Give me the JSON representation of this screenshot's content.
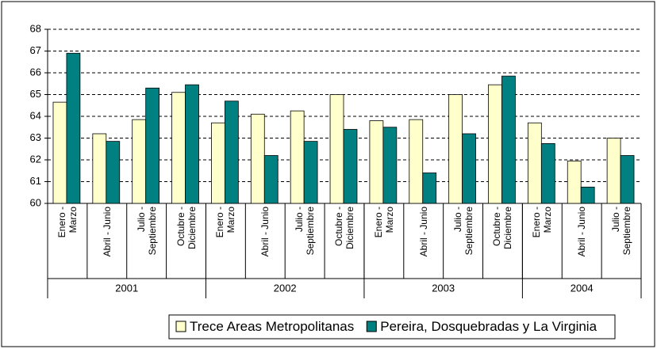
{
  "chart_data": {
    "type": "bar",
    "categories": [
      "Enero -\nMarzo",
      "Abril - Junio",
      "Julio -\nSeptiembre",
      "Octubre -\nDiciembre",
      "Enero -\nMarzo",
      "Abril - Junio",
      "Julio -\nSeptiembre",
      "Octubre -\nDiciembre",
      "Enero -\nMarzo",
      "Abril - Junio",
      "Julio -\nSeptiembre",
      "Octubre -\nDiciembre",
      "Enero -\nMarzo",
      "Abril - Junio",
      "Julio -\nSeptiembre"
    ],
    "groups": [
      {
        "label": "2001",
        "span": 4
      },
      {
        "label": "2002",
        "span": 4
      },
      {
        "label": "2003",
        "span": 4
      },
      {
        "label": "2004",
        "span": 3
      }
    ],
    "series": [
      {
        "name": "Trece Areas Metropolitanas",
        "color": "#ffffcc",
        "values": [
          64.65,
          63.2,
          63.85,
          65.1,
          63.7,
          64.1,
          64.25,
          65.0,
          63.8,
          63.85,
          65.0,
          65.45,
          63.7,
          61.95,
          63.0
        ]
      },
      {
        "name": "Pereira, Dosquebradas y La Virginia",
        "color": "#008080",
        "values": [
          66.9,
          62.85,
          65.3,
          65.45,
          64.7,
          62.2,
          62.85,
          63.4,
          63.5,
          61.4,
          63.2,
          65.85,
          62.75,
          60.75,
          62.2
        ]
      }
    ],
    "ylim": [
      60,
      68
    ],
    "yticks": [
      60,
      61,
      62,
      63,
      64,
      65,
      66,
      67,
      68
    ],
    "grid": true,
    "legend": "bottom"
  }
}
